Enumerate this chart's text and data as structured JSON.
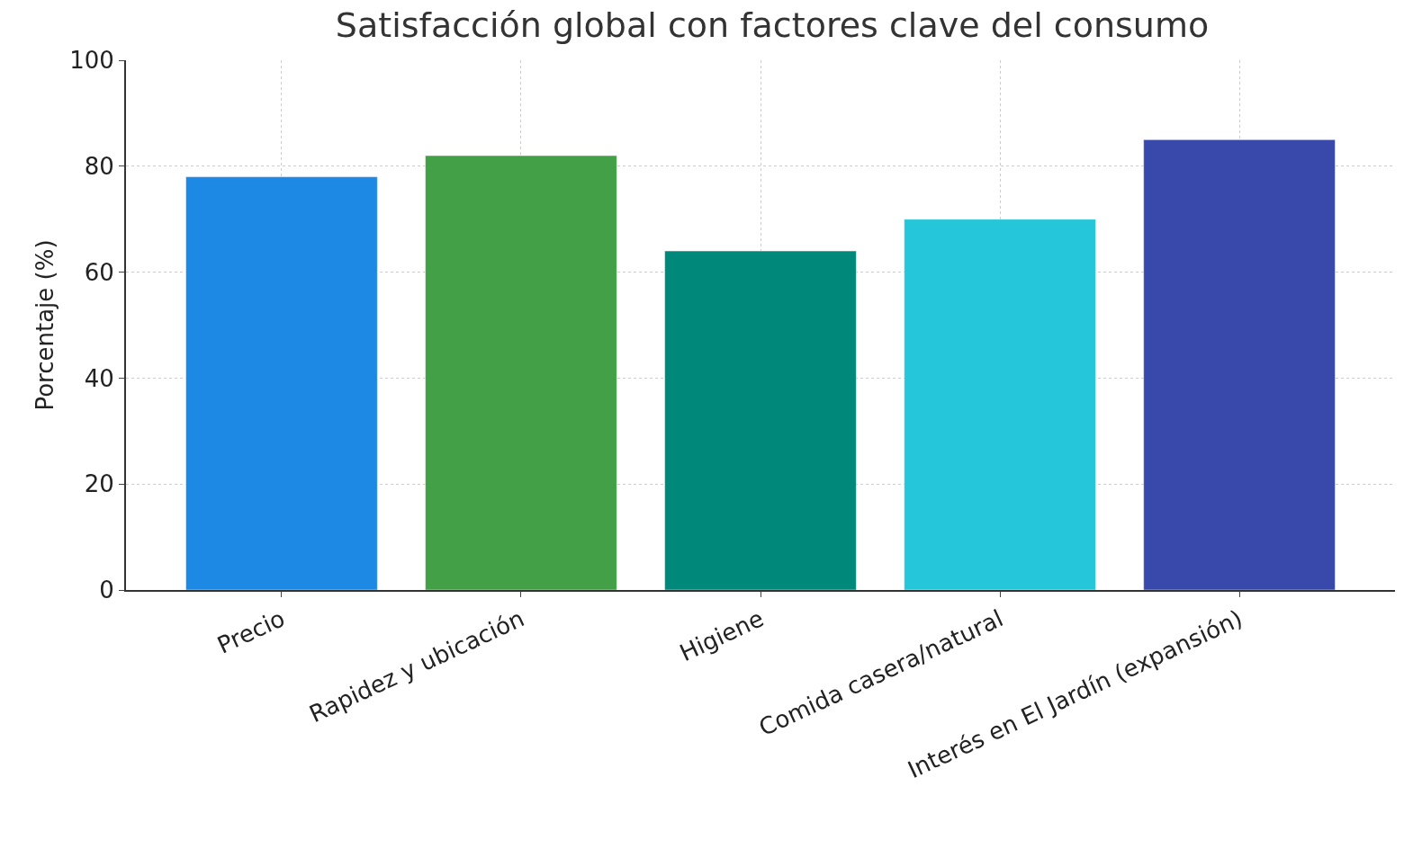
{
  "chart_data": {
    "type": "bar",
    "title": "Satisfacción global con factores clave del consumo",
    "ylabel": "Porcentaje (%)",
    "categories": [
      "Precio",
      "Rapidez y ubicación",
      "Higiene",
      "Comida casera/natural",
      "Interés en El Jardín (expansión)"
    ],
    "values": [
      78,
      82,
      64,
      70,
      85
    ],
    "colors": [
      "#1e88e5",
      "#43a047",
      "#00897b",
      "#26c6da",
      "#3949ab"
    ],
    "ylim": [
      0,
      100
    ],
    "yticks": [
      0,
      20,
      40,
      60,
      80,
      100
    ],
    "grid": true,
    "legend": false
  }
}
